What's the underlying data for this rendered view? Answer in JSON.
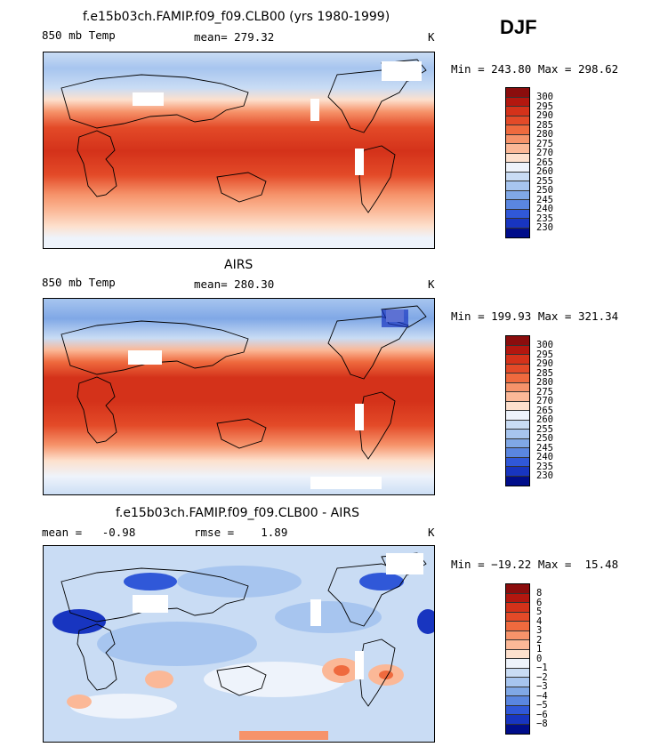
{
  "season": "DJF",
  "panels": [
    {
      "title": "f.e15b03ch.FAMIP.f09_f09.CLB00 (yrs 1980-1999)",
      "variable": "850 mb Temp",
      "stat": "mean= 279.32",
      "units": "K",
      "minmax": "Min = 243.80 Max = 298.62"
    },
    {
      "title": "AIRS",
      "variable": "850 mb Temp",
      "stat": "mean= 280.30",
      "units": "K",
      "minmax": "Min = 199.93 Max = 321.34"
    },
    {
      "title": "f.e15b03ch.FAMIP.f09_f09.CLB00 - AIRS",
      "stat1": "mean =   -0.98",
      "stat2": "rmse =    1.89",
      "units": "K",
      "minmax": "Min = −19.22 Max =  15.48"
    }
  ],
  "temp_scale": {
    "labels": [
      "300",
      "295",
      "290",
      "285",
      "280",
      "275",
      "270",
      "265",
      "260",
      "255",
      "250",
      "245",
      "240",
      "235",
      "230"
    ],
    "colors": [
      "#8b0d0d",
      "#b3170f",
      "#d4321a",
      "#e34a28",
      "#ef6a3e",
      "#f6936a",
      "#fbb897",
      "#fde0cd",
      "#eef3fb",
      "#c9dcf4",
      "#a7c5ef",
      "#80a8e6",
      "#5a86e0",
      "#3058d8",
      "#1835c0",
      "#000d8a"
    ]
  },
  "diff_scale": {
    "labels": [
      "8",
      "6",
      "5",
      "4",
      "3",
      "2",
      "1",
      "0",
      "−1",
      "−2",
      "−3",
      "−4",
      "−5",
      "−6",
      "−8"
    ],
    "colors": [
      "#8b0d0d",
      "#b3170f",
      "#d4321a",
      "#e34a28",
      "#ef6a3e",
      "#f6936a",
      "#fbb897",
      "#fde0cd",
      "#eef3fb",
      "#c9dcf4",
      "#a7c5ef",
      "#80a8e6",
      "#5a86e0",
      "#3058d8",
      "#1835c0",
      "#000d8a"
    ]
  }
}
